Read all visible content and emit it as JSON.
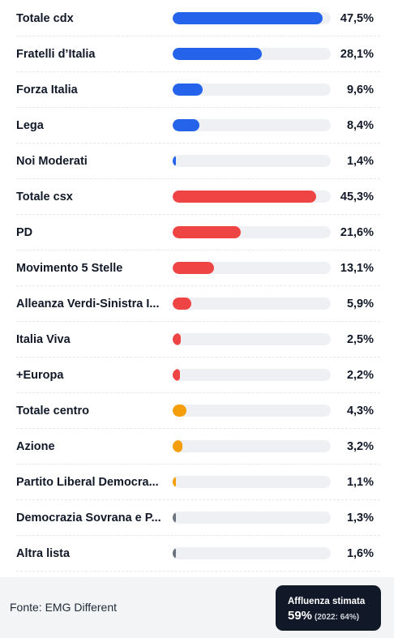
{
  "chart_data": {
    "type": "bar",
    "orientation": "horizontal",
    "xlim": [
      0,
      100
    ],
    "unit": "%",
    "colors": {
      "cdx": "#2563eb",
      "csx": "#ef4444",
      "centro": "#f59e0b",
      "other": "#6b7280"
    },
    "items": [
      {
        "label": "Totale cdx",
        "value": 47.5,
        "display": "47,5%",
        "group": "cdx"
      },
      {
        "label": "Fratelli d’Italia",
        "value": 28.1,
        "display": "28,1%",
        "group": "cdx"
      },
      {
        "label": "Forza Italia",
        "value": 9.6,
        "display": "9,6%",
        "group": "cdx"
      },
      {
        "label": "Lega",
        "value": 8.4,
        "display": "8,4%",
        "group": "cdx"
      },
      {
        "label": "Noi Moderati",
        "value": 1.4,
        "display": "1,4%",
        "group": "cdx"
      },
      {
        "label": "Totale csx",
        "value": 45.3,
        "display": "45,3%",
        "group": "csx"
      },
      {
        "label": "PD",
        "value": 21.6,
        "display": "21,6%",
        "group": "csx"
      },
      {
        "label": "Movimento 5 Stelle",
        "value": 13.1,
        "display": "13,1%",
        "group": "csx"
      },
      {
        "label": "Alleanza Verdi-Sinistra I...",
        "value": 5.9,
        "display": "5,9%",
        "group": "csx"
      },
      {
        "label": "Italia Viva",
        "value": 2.5,
        "display": "2,5%",
        "group": "csx"
      },
      {
        "label": "+Europa",
        "value": 2.2,
        "display": "2,2%",
        "group": "csx"
      },
      {
        "label": "Totale centro",
        "value": 4.3,
        "display": "4,3%",
        "group": "centro"
      },
      {
        "label": "Azione",
        "value": 3.2,
        "display": "3,2%",
        "group": "centro"
      },
      {
        "label": "Partito Liberal Democra...",
        "value": 1.1,
        "display": "1,1%",
        "group": "centro"
      },
      {
        "label": "Democrazia Sovrana e P...",
        "value": 1.3,
        "display": "1,3%",
        "group": "other"
      },
      {
        "label": "Altra lista",
        "value": 1.6,
        "display": "1,6%",
        "group": "other"
      }
    ]
  },
  "footer": {
    "source": "Fonte: EMG Different",
    "turnout_title": "Affluenza stimata",
    "turnout_value": "59%",
    "turnout_previous": "(2022: 64%)"
  }
}
